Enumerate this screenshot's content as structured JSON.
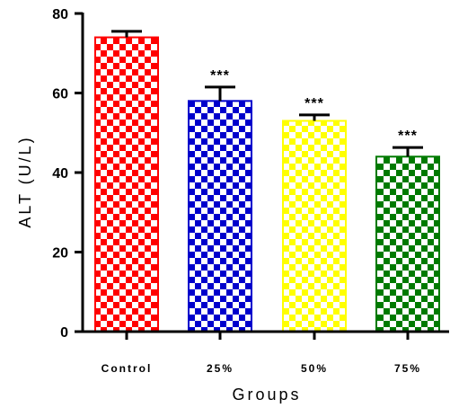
{
  "chart_data": {
    "type": "bar",
    "title": "",
    "xlabel": "Groups",
    "ylabel": "ALT (U/L)",
    "ylim": [
      0,
      80
    ],
    "yticks": [
      0,
      20,
      40,
      60,
      80
    ],
    "categories": [
      "Control",
      "25%",
      "50%",
      "75%"
    ],
    "values": [
      74,
      58,
      53,
      44
    ],
    "errors": [
      1.5,
      3.5,
      1.5,
      2.3
    ],
    "significance": [
      "",
      "***",
      "***",
      "***"
    ],
    "colors": [
      "#ff0000",
      "#0000cc",
      "#ffff00",
      "#007a00"
    ],
    "pattern": "checkerboard",
    "grid": false,
    "legend": "none"
  }
}
